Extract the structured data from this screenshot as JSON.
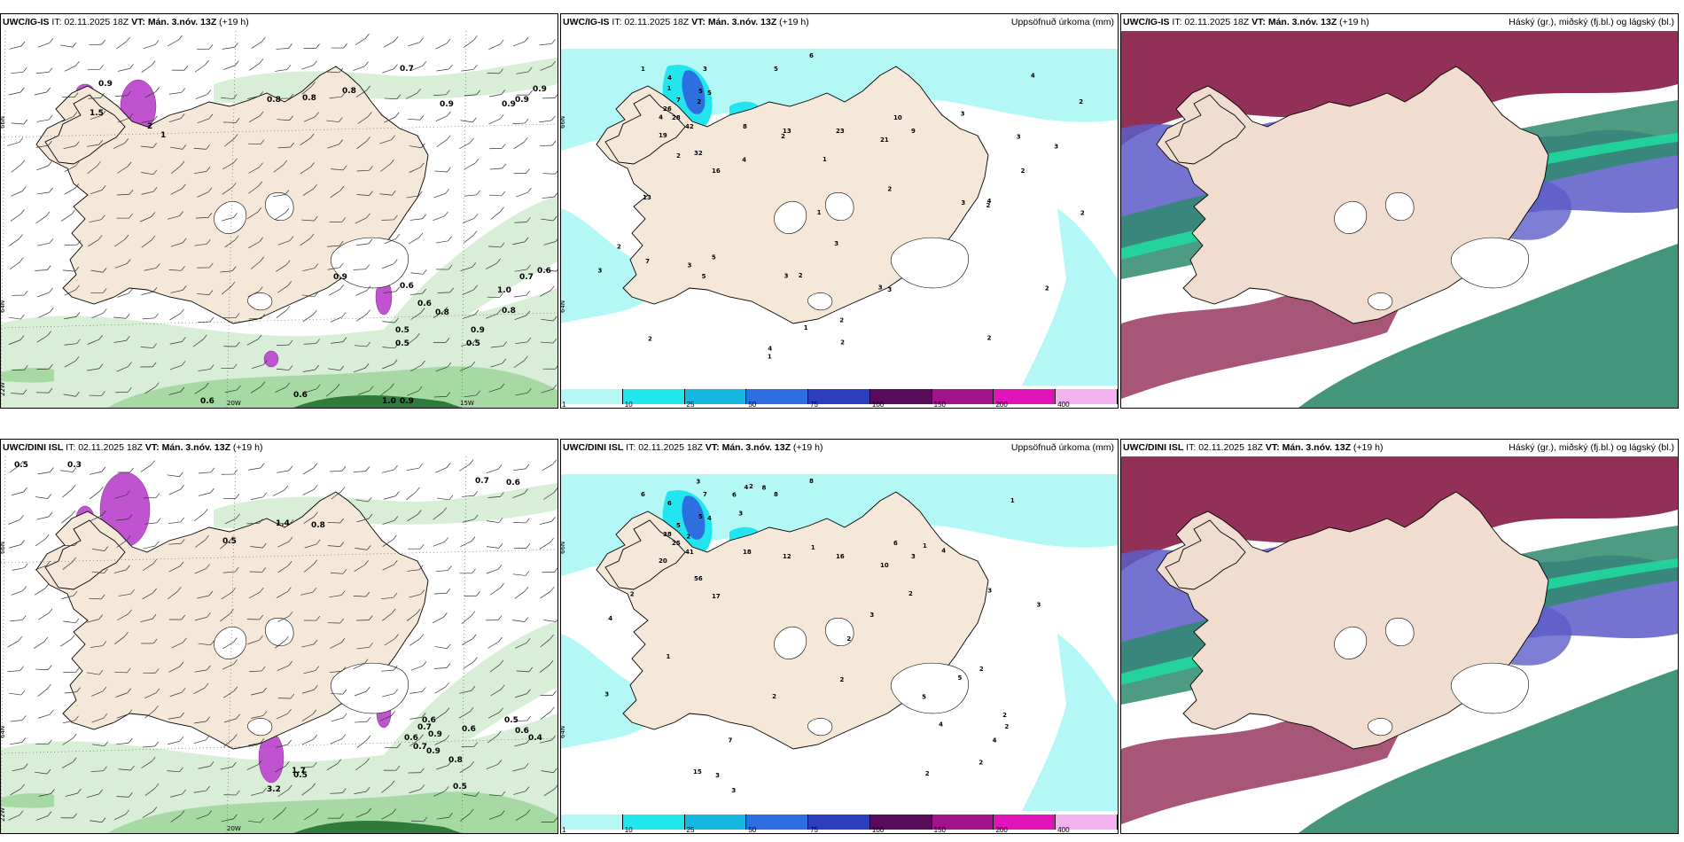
{
  "panels": [
    {
      "id": "wind-igis",
      "model": "UWC/IG-IS",
      "it_label": "IT:",
      "it_value": "02.11.2025 18Z",
      "vt_label": "VT:",
      "vt_value": "Mán. 3.nóv. 13Z",
      "lead": "(+19 h)",
      "right_title": "",
      "values": [
        "0.7",
        "0.8",
        "0.9",
        "0.8",
        "0.9",
        "0.9",
        "0.8",
        "0.9",
        "0.6",
        "0.5",
        "0.5",
        "0.6",
        "0.8",
        "1.0",
        "0.7",
        "0.6",
        "0.8",
        "0.9",
        "0.5",
        "0.6",
        "0.6",
        "1.0",
        "0.9",
        "0.9",
        "0.9",
        "1.5",
        "2",
        "1"
      ],
      "lon_labels": [
        "20W",
        "15W"
      ],
      "lat_labels": [
        "66N",
        "64N",
        "22W"
      ]
    },
    {
      "id": "precip-igis",
      "model": "UWC/IG-IS",
      "it_label": "IT:",
      "it_value": "02.11.2025 18Z",
      "vt_label": "VT:",
      "vt_value": "Mán. 3.nóv. 13Z",
      "lead": "(+19 h)",
      "right_title": "Uppsöfnuð úrkoma (mm)",
      "values": [
        "6",
        "5",
        "3",
        "1",
        "5",
        "4",
        "7",
        "5",
        "26",
        "28",
        "19",
        "42",
        "32",
        "16",
        "8",
        "13",
        "23",
        "21",
        "10",
        "9",
        "3",
        "2",
        "4",
        "3",
        "2",
        "2",
        "1",
        "3",
        "2",
        "2",
        "5",
        "2",
        "4",
        "3",
        "2",
        "2",
        "3",
        "1",
        "13",
        "2",
        "3",
        "4",
        "5",
        "2",
        "3",
        "2",
        "1",
        "2",
        "4",
        "3",
        "2",
        "2",
        "1",
        "3",
        "7",
        "4",
        "1",
        "2",
        "3"
      ],
      "lat_labels": [
        "66N",
        "64N"
      ]
    },
    {
      "id": "cloud-igis",
      "model": "UWC/IG-IS",
      "it_label": "IT:",
      "it_value": "02.11.2025 18Z",
      "vt_label": "VT:",
      "vt_value": "Mán. 3.nóv. 13Z",
      "lead": "(+19 h)",
      "right_title": "Háský (gr.), miðský (fj.bl.) og lágský (bl.)"
    },
    {
      "id": "wind-dini",
      "model": "UWC/DINI ISL",
      "it_label": "IT:",
      "it_value": "02.11.2025 18Z",
      "vt_label": "VT:",
      "vt_value": "Mán. 3.nóv. 13Z",
      "lead": "(+19 h)",
      "right_title": "",
      "values": [
        "0.5",
        "0.3",
        "0.7",
        "0.6",
        "1.4",
        "0.8",
        "0.5",
        "0.6",
        "0.9",
        "0.7",
        "0.6",
        "0.8",
        "0.5",
        "3.2",
        "1.7",
        "0.5",
        "0.6",
        "0.5",
        "0.7",
        "0.6",
        "0.4",
        "0.9"
      ],
      "lon_labels": [
        "20W"
      ],
      "lat_labels": [
        "66N",
        "64N",
        "22W"
      ]
    },
    {
      "id": "precip-dini",
      "model": "UWC/DINI ISL",
      "it_label": "IT:",
      "it_value": "02.11.2025 18Z",
      "vt_label": "VT:",
      "vt_value": "Mán. 3.nóv. 13Z",
      "lead": "(+19 h)",
      "right_title": "Uppsöfnuð úrkoma (mm)",
      "values": [
        "8",
        "8",
        "7",
        "6",
        "5",
        "6",
        "5",
        "4",
        "38",
        "25",
        "20",
        "41",
        "56",
        "17",
        "18",
        "12",
        "16",
        "10",
        "6",
        "3",
        "1",
        "2",
        "3",
        "4",
        "2",
        "5",
        "2",
        "3",
        "2",
        "1",
        "2",
        "3",
        "4",
        "2",
        "3",
        "2",
        "1",
        "2",
        "4",
        "3",
        "15",
        "2",
        "3",
        "4",
        "5",
        "6",
        "7",
        "8",
        "4",
        "3",
        "2",
        "1",
        "2",
        "3",
        "2"
      ],
      "lat_labels": [
        "66N",
        "64N"
      ]
    },
    {
      "id": "cloud-dini",
      "model": "UWC/DINI ISL",
      "it_label": "IT:",
      "it_value": "02.11.2025 18Z",
      "vt_label": "VT:",
      "vt_value": "Mán. 3.nóv. 13Z",
      "lead": "(+19 h)",
      "right_title": "Háský (gr.), miðský (fj.bl.) og lágský (bl.)"
    }
  ],
  "precip_colorbar": {
    "ticks": [
      "1",
      "10",
      "25",
      "50",
      "75",
      "100",
      "150",
      "200",
      "400"
    ],
    "colors": [
      "#b3f7f7",
      "#22e5ee",
      "#15b8e0",
      "#2d6fe0",
      "#2a3fbd",
      "#5a0a5a",
      "#a0138c",
      "#e013b8",
      "#f5b0f0"
    ]
  },
  "colors": {
    "land": "#f5e8d8",
    "coast": "#000000",
    "glacier": "#ffffff",
    "wind_green_light": "#d8eed6",
    "wind_green_mid": "#a6d9a3",
    "wind_green_dark": "#2f7a3d",
    "wind_magenta": "#c054d0",
    "precip_light": "#b3f7f7",
    "precip_mid": "#22e5ee",
    "precip_dark": "#2d6fe0",
    "cloud_high": "#8a1e4a",
    "cloud_mid": "#5c5cc8",
    "cloud_low": "#2f8a6e",
    "cloud_low_bright": "#20d8a0"
  }
}
